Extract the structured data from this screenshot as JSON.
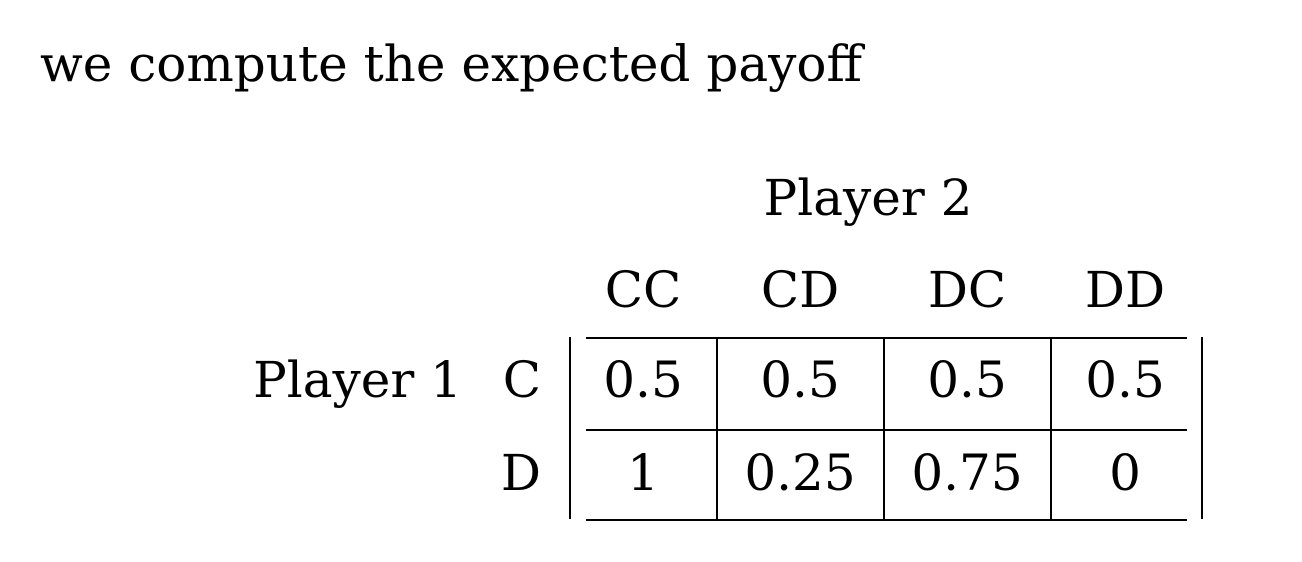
{
  "intro_text": "we compute the expected payoff",
  "table": {
    "column_player": "Player 2",
    "row_player": "Player 1",
    "columns": [
      "CC",
      "CD",
      "DC",
      "DD"
    ],
    "rows": [
      {
        "label": "C",
        "values": [
          "0.5",
          "0.5",
          "0.5",
          "0.5"
        ]
      },
      {
        "label": "D",
        "values": [
          "1",
          "0.25",
          "0.75",
          "0"
        ]
      }
    ]
  }
}
